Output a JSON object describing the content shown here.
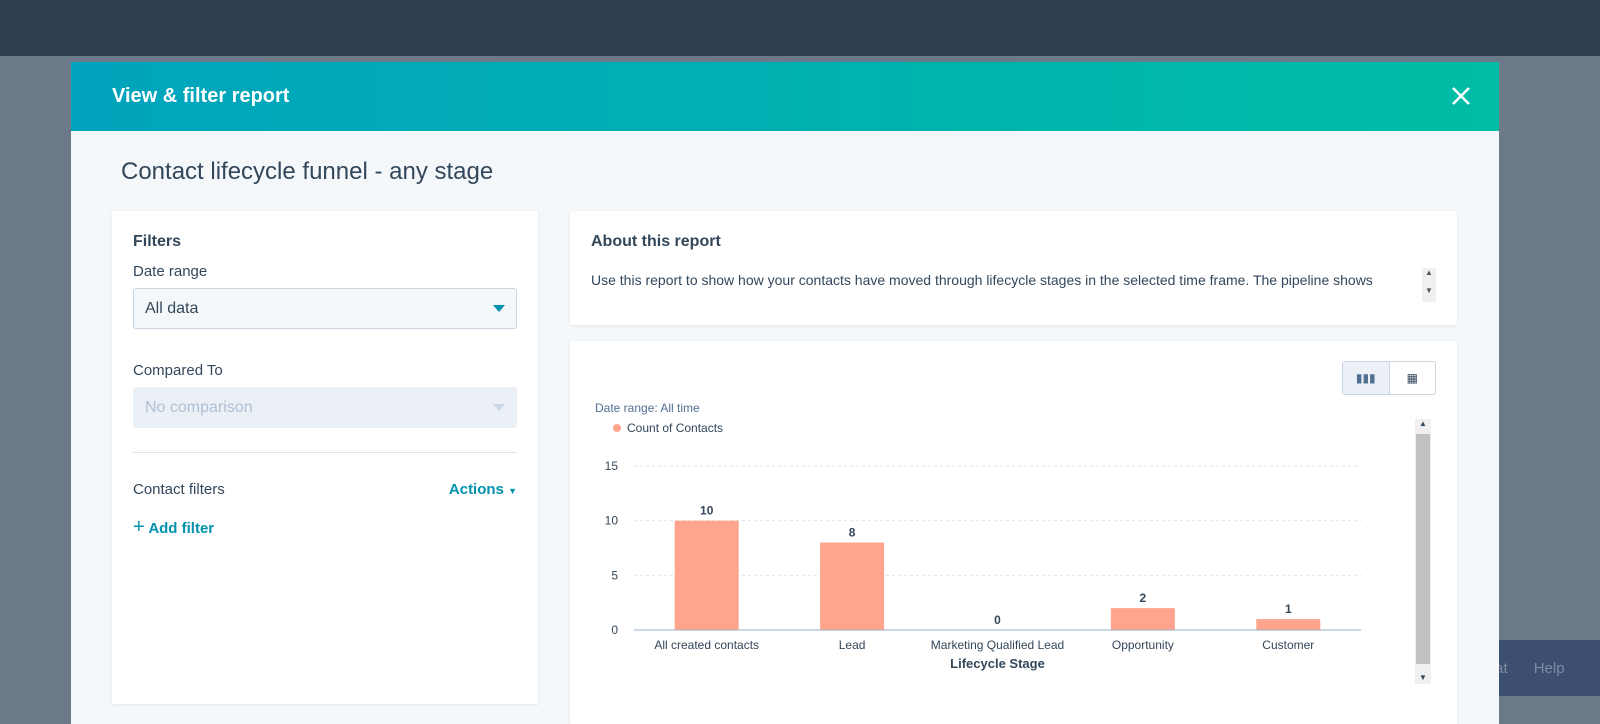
{
  "modal": {
    "title": "View & filter report",
    "report_title": "Contact lifecycle funnel - any stage"
  },
  "filters": {
    "heading": "Filters",
    "date_range_label": "Date range",
    "date_range_value": "All data",
    "compared_label": "Compared To",
    "compared_value": "No comparison",
    "contact_filters_label": "Contact filters",
    "actions_label": "Actions",
    "add_filter_label": "Add filter"
  },
  "about": {
    "heading": "About this report",
    "text": "Use this report to show how your contacts have moved through lifecycle stages in the selected time frame. The pipeline shows contacts who have passed through any of the selected stages."
  },
  "widget": {
    "chat": "Chat",
    "help": "Help"
  },
  "colors": {
    "bar": "#ffa58d",
    "accent": "#0091ae"
  },
  "chart_data": {
    "type": "bar",
    "subtitle": "Date range: All time",
    "legend": [
      "Count of Contacts"
    ],
    "legend_placement": "top-left",
    "categories": [
      "All created contacts",
      "Lead",
      "Marketing Qualified Lead",
      "Opportunity",
      "Customer"
    ],
    "values": [
      10,
      8,
      0,
      2,
      1
    ],
    "xlabel": "Lifecycle Stage",
    "ylabel": "",
    "ylim": [
      0,
      15
    ],
    "yticks": [
      0,
      5,
      10,
      15
    ],
    "grid": true
  }
}
